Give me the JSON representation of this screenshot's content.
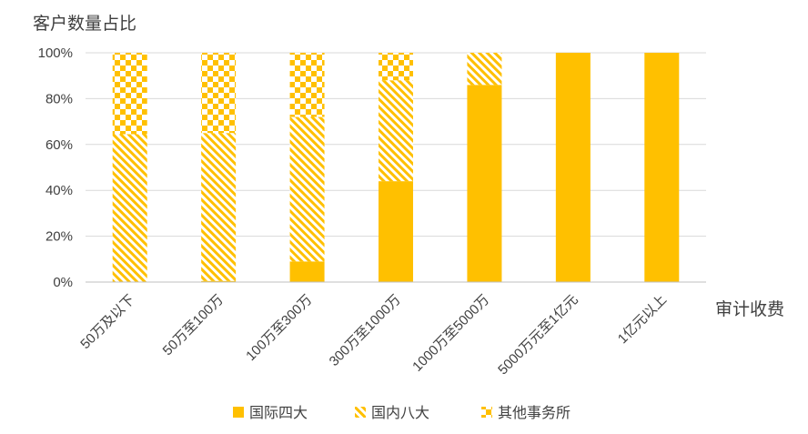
{
  "chart_data": {
    "type": "bar",
    "stacked": true,
    "title": "客户数量占比",
    "xlabel": "审计收费",
    "ylabel": "",
    "ylim": [
      0,
      100
    ],
    "yticks": [
      "0%",
      "20%",
      "40%",
      "60%",
      "80%",
      "100%"
    ],
    "categories": [
      "50万及以下",
      "50万至100万",
      "100万至300万",
      "300万至1000万",
      "1000万至5000万",
      "5000万元至1亿元",
      "1亿元以上"
    ],
    "series": [
      {
        "name": "国际四大",
        "pattern": "solid",
        "values": [
          0,
          0.5,
          9,
          44,
          86,
          100,
          100
        ]
      },
      {
        "name": "国内八大",
        "pattern": "diagonal",
        "values": [
          64.5,
          64.5,
          63,
          44,
          14,
          0,
          0
        ]
      },
      {
        "name": "其他事务所",
        "pattern": "checker",
        "values": [
          35.5,
          35,
          28,
          12,
          0,
          0,
          0
        ]
      }
    ],
    "grid": true,
    "legend": "bottom",
    "color": "#FFC000"
  }
}
